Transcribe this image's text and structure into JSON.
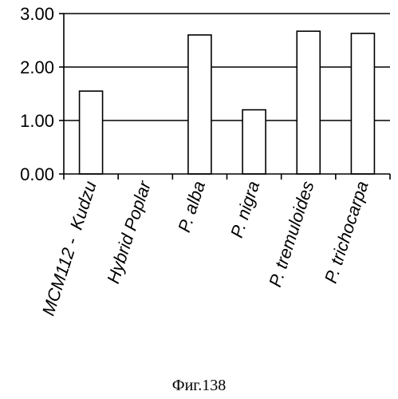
{
  "figure_caption": "Фиг.138",
  "chart_data": {
    "type": "bar",
    "categories": [
      "MCM112 -  Kudzu",
      "Hybrid Poplar",
      "P. alba",
      "P. nigra",
      "P. tremuloides",
      "P. trichocarpa"
    ],
    "values": [
      1.55,
      0,
      2.6,
      1.2,
      2.67,
      2.63
    ],
    "title": "",
    "xlabel": "",
    "ylabel": "",
    "ylim": [
      0,
      3
    ],
    "yticks": [
      0,
      1,
      2,
      3
    ],
    "ytick_labels": [
      "0.00",
      "1.00",
      "2.00",
      "3.00"
    ],
    "grid": "horizontal",
    "legend": "none",
    "bar_fill": "#ffffff",
    "bar_stroke": "#000000",
    "grid_color": "#000000"
  }
}
